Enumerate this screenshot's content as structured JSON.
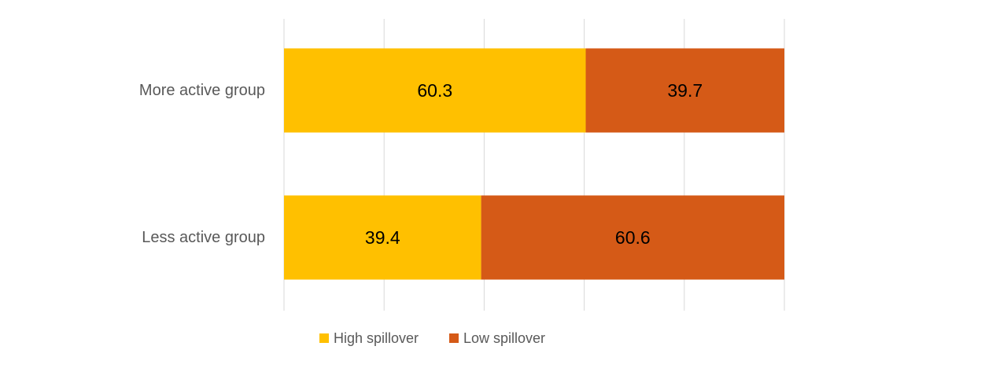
{
  "chart_data": {
    "type": "bar",
    "orientation": "horizontal",
    "stacked": true,
    "categories": [
      "More active group",
      "Less active group"
    ],
    "series": [
      {
        "name": "High spillover",
        "values": [
          60.3,
          39.4
        ],
        "color": "#FFC000"
      },
      {
        "name": "Low spillover",
        "values": [
          39.7,
          60.6
        ],
        "color": "#D55A17"
      }
    ],
    "xlim": [
      0,
      100
    ],
    "grid": true,
    "legend_position": "bottom"
  }
}
